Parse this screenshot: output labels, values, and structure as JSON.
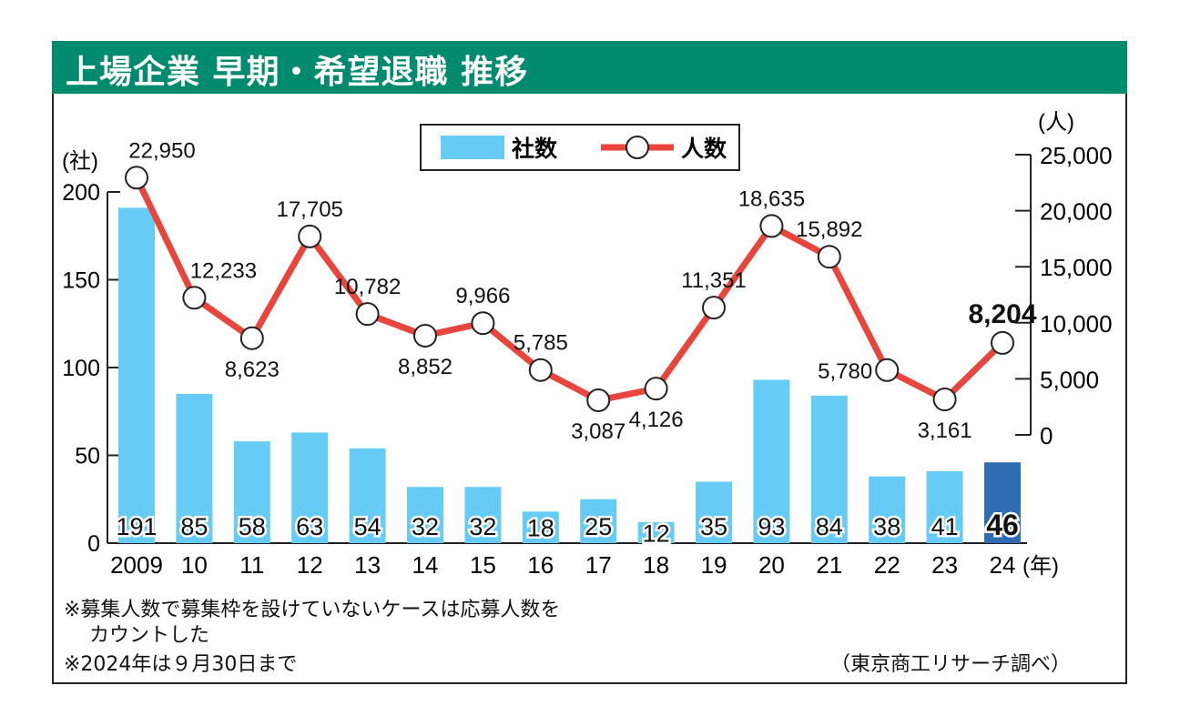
{
  "chart_data": {
    "type": "bar+line",
    "title": "上場企業 早期・希望退職 推移",
    "categories": [
      "2009",
      "10",
      "11",
      "12",
      "13",
      "14",
      "15",
      "16",
      "17",
      "18",
      "19",
      "20",
      "21",
      "22",
      "23",
      "24"
    ],
    "x_unit": "(年)",
    "series": [
      {
        "name": "社数",
        "type": "bar",
        "axis": "left",
        "color": "#66CCF5",
        "highlight_color": "#2E6DB4",
        "values": [
          191,
          85,
          58,
          63,
          54,
          32,
          32,
          18,
          25,
          12,
          35,
          93,
          84,
          38,
          41,
          46
        ],
        "labels": [
          "191",
          "85",
          "58",
          "63",
          "54",
          "32",
          "32",
          "18",
          "25",
          "12",
          "35",
          "93",
          "84",
          "38",
          "41",
          "46"
        ]
      },
      {
        "name": "人数",
        "type": "line",
        "axis": "right",
        "color": "#E8453C",
        "values": [
          22950,
          12233,
          8623,
          17705,
          10782,
          8852,
          9966,
          5785,
          3087,
          4126,
          11351,
          18635,
          15892,
          5780,
          3161,
          8204
        ],
        "labels": [
          "22,950",
          "12,233",
          "8,623",
          "17,705",
          "10,782",
          "8,852",
          "9,966",
          "5,785",
          "3,087",
          "4,126",
          "11,351",
          "18,635",
          "15,892",
          "5,780",
          "3,161",
          "8,204"
        ],
        "label_side": [
          "above",
          "above",
          "below",
          "above",
          "above",
          "below",
          "above",
          "above",
          "below",
          "below",
          "above",
          "above",
          "above",
          "left",
          "below",
          "above"
        ]
      }
    ],
    "y_left": {
      "unit": "(社)",
      "range": [
        0,
        200
      ],
      "ticks": [
        "0",
        "50",
        "100",
        "150",
        "200"
      ]
    },
    "y_right": {
      "unit": "(人)",
      "range": [
        0,
        25000
      ],
      "ticks": [
        "0",
        "5,000",
        "10,000",
        "15,000",
        "20,000",
        "25,000"
      ]
    },
    "legend": {
      "placement": "top-center",
      "items": [
        "社数",
        "人数"
      ]
    },
    "grid": false
  },
  "notes": {
    "note1_line1": "※募集人数で募集枠を設けていないケースは応募人数を",
    "note1_line2": "カウントした",
    "note2": "※2024年は９月30日まで",
    "source": "（東京商工リサーチ調べ）"
  }
}
